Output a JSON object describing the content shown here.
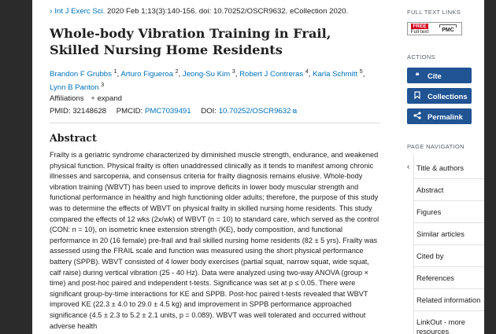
{
  "citation": {
    "journal": "Int J Exerc Sci.",
    "details": "2020 Feb 1;13(3):140-156. doi: 10.70252/OSCR9632. eCollection 2020."
  },
  "title": "Whole-body Vibration Training in Frail, Skilled Nursing Home Residents",
  "authors": [
    {
      "name": "Brandon F Grubbs",
      "sup": "1"
    },
    {
      "name": "Arturo Figueroa",
      "sup": "2"
    },
    {
      "name": "Jeong-Su Kim",
      "sup": "3"
    },
    {
      "name": "Robert J Contreras",
      "sup": "4"
    },
    {
      "name": "Karla Schmitt",
      "sup": "5"
    },
    {
      "name": "Lynn B Panton",
      "sup": "3"
    }
  ],
  "affiliations": {
    "label": "Affiliations",
    "expand": "expand"
  },
  "ids": {
    "pmid_label": "PMID:",
    "pmid": "32148628",
    "pmcid_label": "PMCID:",
    "pmcid": "PMC7039491",
    "doi_label": "DOI:",
    "doi": "10.70252/OSCR9632"
  },
  "abstract": {
    "heading": "Abstract",
    "text": "Frailty is a geriatric syndrome characterized by diminished muscle strength, endurance, and weakened physical function. Physical frailty is often unaddressed clinically as it tends to manifest among chronic illnesses and sarcopenia, and consensus criteria for frailty diagnosis remains elusive. Whole-body vibration training (WBVT) has been used to improve deficits in lower body muscular strength and functional performance in healthy and high functioning older adults; therefore, the purpose of this study was to determine the effects of WBVT on physical frailty in skilled nursing home residents. This study compared the effects of 12 wks (2x/wk) of WBVT (n = 10) to standard care, which served as the control (CON: n = 10), on isometric knee extension strength (KE), body composition, and functional performance in 20 (16 female) pre-frail and frail skilled nursing home residents (82 ± 5 yrs). Frailty was assessed using the FRAIL scale and function was measured using the short physical performance battery (SPPB). WBVT consisted of 4 lower body exercises (partial squat, narrow squat, wide squat, calf raise) during vertical vibration (25 - 40 Hz). Data were analyzed using two-way ANOVA (group × time) and post-hoc paired and independent t-tests. Significance was set at p ≤ 0.05. There were significant group-by-time interactions for KE and SPPB. Post-hoc paired t-tests revealed that WBVT improved KE (22.3 ± 4.0 to 29.0 ± 4.5 kg) and improvement in SPPB performance approached significance (4.5 ± 2.3 to 5.2 ± 2.1 units, p = 0.089). WBVT was well tolerated and occurred without adverse health"
  },
  "sidebar": {
    "full_text_heading": "FULL TEXT LINKS",
    "free_badge": {
      "free": "FREE",
      "full_text": "Full text",
      "pmc": "PMC"
    },
    "actions_heading": "ACTIONS",
    "actions": [
      {
        "icon": "quote-icon",
        "label": "Cite"
      },
      {
        "icon": "bookmark-icon",
        "label": "Collections"
      },
      {
        "icon": "share-icon",
        "label": "Permalink"
      }
    ],
    "nav_heading": "PAGE NAVIGATION",
    "nav": [
      {
        "label": "Title & authors"
      },
      {
        "label": "Abstract"
      },
      {
        "label": "Figures"
      },
      {
        "label": "Similar articles"
      },
      {
        "label": "Cited by"
      },
      {
        "label": "References"
      },
      {
        "label": "Related information"
      },
      {
        "label": "LinkOut - more resources"
      }
    ]
  },
  "colors": {
    "link": "#0071bc",
    "button": "#205493",
    "free_badge": "#d6001c"
  }
}
